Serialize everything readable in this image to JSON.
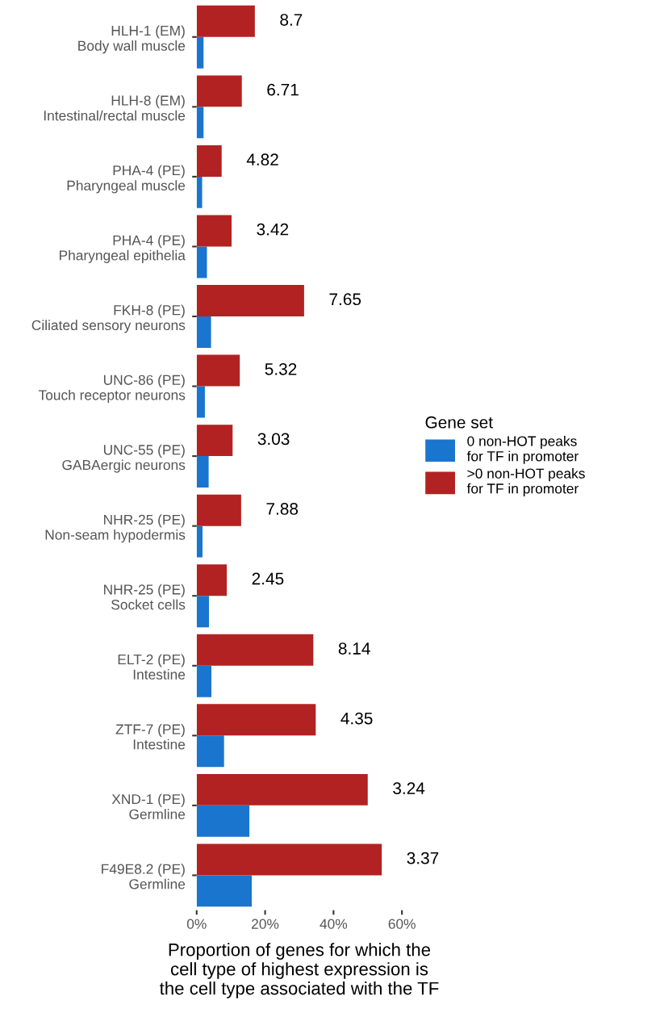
{
  "chart_data": {
    "type": "bar",
    "orientation": "horizontal",
    "categories": [
      "HLH-1 (EM)\nBody wall muscle",
      "HLH-8 (EM)\nIntestinal/rectal muscle",
      "PHA-4 (PE)\nPharyngeal muscle",
      "PHA-4 (PE)\nPharyngeal epithelia",
      "FKH-8 (PE)\nCiliated sensory neurons",
      "UNC-86 (PE)\nTouch receptor neurons",
      "UNC-55 (PE)\nGABAergic neurons",
      "NHR-25 (PE)\nNon-seam hypodermis",
      "NHR-25 (PE)\nSocket cells",
      "ELT-2 (PE)\nIntestine",
      "ZTF-7 (PE)\nIntestine",
      "XND-1 (PE)\nGermline",
      "F49E8.2 (PE)\nGermline"
    ],
    "series": [
      {
        "name": "0 non-HOT peaks\nfor TF in promoter",
        "color": "#1a75cf",
        "values": [
          2.0,
          2.0,
          1.6,
          3.0,
          4.2,
          2.4,
          3.5,
          1.7,
          3.6,
          4.3,
          8.0,
          15.4,
          16.1
        ]
      },
      {
        "name": ">0 non-HOT peaks\nfor TF in promoter",
        "color": "#b22222",
        "values": [
          17.0,
          13.2,
          7.3,
          10.2,
          31.4,
          12.6,
          10.5,
          13.0,
          8.8,
          34.1,
          34.8,
          50.0,
          54.1
        ]
      }
    ],
    "annotations": [
      {
        "text": "8.7",
        "x": 17.0,
        "y": "HLH-1 (EM)\nBody wall muscle"
      },
      {
        "text": "6.71",
        "x": 13.2,
        "y": "HLH-8 (EM)\nIntestinal/rectal muscle"
      },
      {
        "text": "4.82",
        "x": 7.3,
        "y": "PHA-4 (PE)\nPharyngeal muscle"
      },
      {
        "text": "3.42",
        "x": 10.2,
        "y": "PHA-4 (PE)\nPharyngeal epithelia"
      },
      {
        "text": "7.65",
        "x": 31.4,
        "y": "FKH-8 (PE)\nCiliated sensory neurons"
      },
      {
        "text": "5.32",
        "x": 12.6,
        "y": "UNC-86 (PE)\nTouch receptor neurons"
      },
      {
        "text": "3.03",
        "x": 10.5,
        "y": "UNC-55 (PE)\nGABAergic neurons"
      },
      {
        "text": "7.88",
        "x": 13.0,
        "y": "NHR-25 (PE)\nNon-seam hypodermis"
      },
      {
        "text": "2.45",
        "x": 8.8,
        "y": "NHR-25 (PE)\nSocket cells"
      },
      {
        "text": "8.14",
        "x": 34.1,
        "y": "ELT-2 (PE)\nIntestine"
      },
      {
        "text": "4.35",
        "x": 34.8,
        "y": "ZTF-7 (PE)\nIntestine"
      },
      {
        "text": "3.24",
        "x": 50.0,
        "y": "XND-1 (PE)\nGermline"
      },
      {
        "text": "3.37",
        "x": 54.1,
        "y": "F49E8.2 (PE)\nGermline"
      }
    ],
    "xlabel": "Proportion of genes for which the\ncell type of highest expression is\nthe cell type associated with the TF",
    "legend_title": "Gene set",
    "legend": "right",
    "xlim": [
      0,
      60
    ],
    "xticks": [
      {
        "value": 0,
        "label": "0%"
      },
      {
        "value": 20,
        "label": "20%"
      },
      {
        "value": 40,
        "label": "40%"
      },
      {
        "value": 60,
        "label": "60%"
      }
    ],
    "grid": false
  }
}
